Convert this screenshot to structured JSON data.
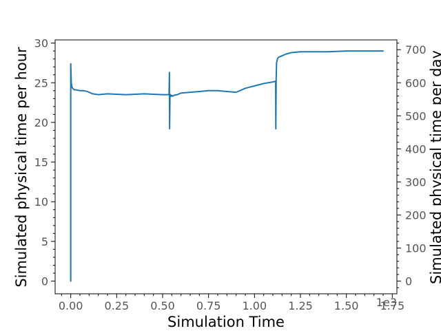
{
  "chart_data": {
    "type": "line",
    "xlabel": "Simulation Time",
    "ylabel": "Simulated physical time per hour",
    "y2label": "Simulated physical time per day",
    "x_offset_label": "1e3",
    "xlim": [
      -0.085,
      1.775
    ],
    "ylim": [
      -1.6,
      30.4
    ],
    "y2lim": [
      -38.4,
      729.6
    ],
    "x_ticks": [
      0.0,
      0.25,
      0.5,
      0.75,
      1.0,
      1.25,
      1.5,
      1.75
    ],
    "x_tick_labels": [
      "0.00",
      "0.25",
      "0.50",
      "0.75",
      "1.00",
      "1.25",
      "1.50",
      "1.75"
    ],
    "y_ticks": [
      0,
      5,
      10,
      15,
      20,
      25,
      30
    ],
    "y_tick_labels": [
      "0",
      "5",
      "10",
      "15",
      "20",
      "25",
      "30"
    ],
    "y2_ticks": [
      0,
      100,
      200,
      300,
      400,
      500,
      600,
      700
    ],
    "y2_tick_labels": [
      "0",
      "100",
      "200",
      "300",
      "400",
      "500",
      "600",
      "700"
    ],
    "grid": false,
    "series_color": "#1f77b4",
    "series": [
      {
        "x": [
          0.0,
          0.0,
          0.003,
          0.006,
          0.01,
          0.015,
          0.02,
          0.03,
          0.05,
          0.07,
          0.09,
          0.1,
          0.12,
          0.15,
          0.2,
          0.3,
          0.4,
          0.5,
          0.535,
          0.537,
          0.538,
          0.54,
          0.543,
          0.546,
          0.55,
          0.555,
          0.56,
          0.58,
          0.6,
          0.65,
          0.7,
          0.75,
          0.8,
          0.85,
          0.9,
          0.95,
          1.0,
          1.05,
          1.1,
          1.115,
          1.116,
          1.117,
          1.118,
          1.12,
          1.125,
          1.13,
          1.14,
          1.15,
          1.17,
          1.2,
          1.25,
          1.3,
          1.4,
          1.5,
          1.6,
          1.7
        ],
        "y": [
          0.0,
          27.4,
          25.0,
          24.5,
          24.3,
          24.2,
          24.1,
          24.1,
          24.0,
          24.0,
          23.9,
          23.8,
          23.6,
          23.5,
          23.6,
          23.5,
          23.6,
          23.5,
          23.5,
          26.3,
          19.2,
          23.2,
          23.5,
          23.3,
          23.4,
          23.3,
          23.4,
          23.5,
          23.7,
          23.8,
          23.9,
          24.0,
          24.0,
          23.9,
          23.8,
          24.3,
          24.6,
          24.9,
          25.1,
          25.2,
          19.2,
          22.0,
          25.5,
          27.5,
          28.0,
          28.2,
          28.3,
          28.4,
          28.6,
          28.8,
          28.9,
          28.9,
          28.9,
          29.0,
          29.0,
          29.0
        ]
      }
    ]
  }
}
